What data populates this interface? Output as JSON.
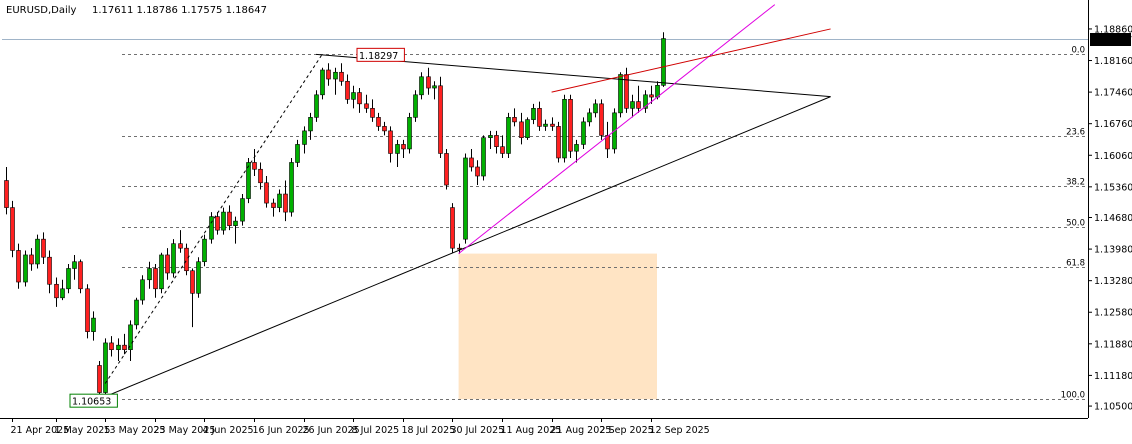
{
  "header": {
    "symbol_tf": "EURUSD,Daily",
    "ohlc": "1.17611 1.18786 1.17575 1.18647"
  },
  "chart_data": {
    "type": "candlestick",
    "symbol": "EURUSD",
    "timeframe": "Daily",
    "ylim": [
      1.1028,
      1.1928
    ],
    "y_ticks": [
      "1.18860",
      "1.18160",
      "1.17460",
      "1.16760",
      "1.16060",
      "1.15360",
      "1.14680",
      "1.13980",
      "1.13280",
      "1.12580",
      "1.11880",
      "1.11180",
      "1.10500"
    ],
    "x_ticks": [
      {
        "label": "21 Apr 2025",
        "i": 1
      },
      {
        "label": "1 May 2025",
        "i": 8
      },
      {
        "label": "13 May 2025",
        "i": 16
      },
      {
        "label": "23 May 2025",
        "i": 24
      },
      {
        "label": "4 Jun 2025",
        "i": 32
      },
      {
        "label": "16 Jun 2025",
        "i": 40
      },
      {
        "label": "26 Jun 2025",
        "i": 48
      },
      {
        "label": "8 Jul 2025",
        "i": 56
      },
      {
        "label": "18 Jul 2025",
        "i": 64
      },
      {
        "label": "30 Jul 2025",
        "i": 72
      },
      {
        "label": "11 Aug 2025",
        "i": 80
      },
      {
        "label": "21 Aug 2025",
        "i": 88
      },
      {
        "label": "2 Sep 2025",
        "i": 96
      },
      {
        "label": "12 Sep 2025",
        "i": 104
      }
    ],
    "price_tag": "1.18647",
    "last_price": 1.18647,
    "swing_high_label": "1.18297",
    "swing_high_price": 1.18297,
    "swing_low_label": "1.10653",
    "swing_low_price": 1.10653,
    "fib_levels": [
      {
        "label": "0.0",
        "price": 1.18297
      },
      {
        "label": "23.6",
        "price": 1.16493
      },
      {
        "label": "38.2",
        "price": 1.15377
      },
      {
        "label": "50.0",
        "price": 1.14475
      },
      {
        "label": "61.8",
        "price": 1.13573
      },
      {
        "label": "100.0",
        "price": 1.10653
      }
    ],
    "zone": {
      "i_start": 73,
      "i_end": 105,
      "price_top": 1.1388,
      "price_bottom": 1.10653,
      "color": "#FFE4C4"
    },
    "trendlines": [
      {
        "name": "resistance",
        "color": "#000000",
        "p1": [
          50,
          1.18297
        ],
        "p2": [
          133,
          1.1736
        ]
      },
      {
        "name": "support",
        "color": "#000000",
        "p1": [
          15,
          1.10653
        ],
        "p2": [
          133,
          1.1736
        ]
      },
      {
        "name": "rising-support",
        "color": "#E000E0",
        "p1": [
          73,
          1.1388
        ],
        "p2": [
          124,
          1.194
        ]
      },
      {
        "name": "channel-top",
        "color": "#D00000",
        "p1": [
          88,
          1.1746
        ],
        "p2": [
          133,
          1.1886
        ]
      },
      {
        "name": "swing-connector",
        "color": "#000000",
        "dashed": true,
        "p1": [
          16,
          1.11
        ],
        "p2": [
          51,
          1.18297
        ]
      }
    ],
    "colors": {
      "bull": "#00B000",
      "bear": "#FF2020",
      "grid": "#808080",
      "price_line": "#A0B4C8"
    },
    "candles": [
      [
        1.155,
        1.158,
        1.1475,
        1.149
      ],
      [
        1.149,
        1.1505,
        1.138,
        1.1395
      ],
      [
        1.1395,
        1.141,
        1.131,
        1.1325
      ],
      [
        1.1325,
        1.1395,
        1.1315,
        1.1385
      ],
      [
        1.1385,
        1.14,
        1.135,
        1.1365
      ],
      [
        1.1365,
        1.143,
        1.1355,
        1.142
      ],
      [
        1.142,
        1.1435,
        1.1365,
        1.138
      ],
      [
        1.138,
        1.1395,
        1.13,
        1.132
      ],
      [
        1.132,
        1.1335,
        1.127,
        1.129
      ],
      [
        1.129,
        1.133,
        1.1285,
        1.131
      ],
      [
        1.131,
        1.1365,
        1.13,
        1.1355
      ],
      [
        1.1355,
        1.1385,
        1.133,
        1.137
      ],
      [
        1.137,
        1.1375,
        1.13,
        1.131
      ],
      [
        1.131,
        1.132,
        1.12,
        1.1215
      ],
      [
        1.1215,
        1.126,
        1.1195,
        1.1245
      ],
      [
        1.114,
        1.115,
        1.1065,
        1.108
      ],
      [
        1.108,
        1.12,
        1.107,
        1.119
      ],
      [
        1.119,
        1.1205,
        1.116,
        1.1175
      ],
      [
        1.1175,
        1.12,
        1.115,
        1.1185
      ],
      [
        1.1185,
        1.121,
        1.1165,
        1.1175
      ],
      [
        1.1175,
        1.124,
        1.115,
        1.123
      ],
      [
        1.123,
        1.129,
        1.122,
        1.1285
      ],
      [
        1.1285,
        1.134,
        1.1275,
        1.133
      ],
      [
        1.133,
        1.137,
        1.131,
        1.1355
      ],
      [
        1.1355,
        1.1365,
        1.129,
        1.131
      ],
      [
        1.131,
        1.139,
        1.13,
        1.1385
      ],
      [
        1.1385,
        1.14,
        1.133,
        1.1345
      ],
      [
        1.1345,
        1.142,
        1.1335,
        1.141
      ],
      [
        1.141,
        1.144,
        1.139,
        1.14
      ],
      [
        1.14,
        1.141,
        1.134,
        1.135
      ],
      [
        1.135,
        1.1355,
        1.1225,
        1.13
      ],
      [
        1.13,
        1.138,
        1.129,
        1.137
      ],
      [
        1.137,
        1.143,
        1.136,
        1.142
      ],
      [
        1.142,
        1.148,
        1.141,
        1.147
      ],
      [
        1.147,
        1.148,
        1.143,
        1.144
      ],
      [
        1.144,
        1.149,
        1.143,
        1.148
      ],
      [
        1.148,
        1.1495,
        1.144,
        1.145
      ],
      [
        1.145,
        1.147,
        1.141,
        1.146
      ],
      [
        1.146,
        1.152,
        1.145,
        1.151
      ],
      [
        1.151,
        1.16,
        1.15,
        1.159
      ],
      [
        1.159,
        1.162,
        1.156,
        1.1575
      ],
      [
        1.1575,
        1.159,
        1.153,
        1.1545
      ],
      [
        1.1545,
        1.156,
        1.149,
        1.15
      ],
      [
        1.15,
        1.151,
        1.147,
        1.149
      ],
      [
        1.149,
        1.153,
        1.148,
        1.152
      ],
      [
        1.152,
        1.155,
        1.146,
        1.148
      ],
      [
        1.148,
        1.16,
        1.147,
        1.159
      ],
      [
        1.159,
        1.164,
        1.158,
        1.163
      ],
      [
        1.163,
        1.167,
        1.161,
        1.166
      ],
      [
        1.166,
        1.17,
        1.164,
        1.169
      ],
      [
        1.169,
        1.175,
        1.168,
        1.174
      ],
      [
        1.174,
        1.18,
        1.173,
        1.1795
      ],
      [
        1.1795,
        1.181,
        1.176,
        1.1775
      ],
      [
        1.1775,
        1.18,
        1.174,
        1.179
      ],
      [
        1.179,
        1.181,
        1.176,
        1.177
      ],
      [
        1.177,
        1.1785,
        1.172,
        1.173
      ],
      [
        1.173,
        1.176,
        1.171,
        1.1745
      ],
      [
        1.1745,
        1.1755,
        1.17,
        1.172
      ],
      [
        1.172,
        1.174,
        1.17,
        1.171
      ],
      [
        1.171,
        1.173,
        1.168,
        1.169
      ],
      [
        1.169,
        1.17,
        1.166,
        1.167
      ],
      [
        1.167,
        1.168,
        1.165,
        1.166
      ],
      [
        1.166,
        1.167,
        1.159,
        1.161
      ],
      [
        1.161,
        1.164,
        1.158,
        1.163
      ],
      [
        1.163,
        1.164,
        1.16,
        1.162
      ],
      [
        1.162,
        1.17,
        1.161,
        1.169
      ],
      [
        1.169,
        1.175,
        1.168,
        1.174
      ],
      [
        1.174,
        1.179,
        1.173,
        1.178
      ],
      [
        1.178,
        1.18,
        1.174,
        1.1755
      ],
      [
        1.1755,
        1.177,
        1.173,
        1.176
      ],
      [
        1.176,
        1.178,
        1.16,
        1.161
      ],
      [
        1.161,
        1.162,
        1.153,
        1.154
      ],
      [
        1.149,
        1.15,
        1.139,
        1.14
      ],
      [
        1.14,
        1.141,
        1.1388,
        1.1398
      ],
      [
        1.142,
        1.161,
        1.141,
        1.16
      ],
      [
        1.16,
        1.162,
        1.157,
        1.158
      ],
      [
        1.158,
        1.1595,
        1.154,
        1.156
      ],
      [
        1.156,
        1.165,
        1.155,
        1.1645
      ],
      [
        1.1645,
        1.166,
        1.162,
        1.165
      ],
      [
        1.165,
        1.166,
        1.161,
        1.1625
      ],
      [
        1.1625,
        1.165,
        1.16,
        1.161
      ],
      [
        1.161,
        1.17,
        1.16,
        1.169
      ],
      [
        1.169,
        1.171,
        1.167,
        1.168
      ],
      [
        1.168,
        1.17,
        1.163,
        1.1645
      ],
      [
        1.1645,
        1.169,
        1.164,
        1.1685
      ],
      [
        1.1685,
        1.172,
        1.1675,
        1.171
      ],
      [
        1.171,
        1.1725,
        1.166,
        1.167
      ],
      [
        1.167,
        1.1685,
        1.166,
        1.1675
      ],
      [
        1.1675,
        1.169,
        1.166,
        1.167
      ],
      [
        1.167,
        1.168,
        1.159,
        1.16
      ],
      [
        1.16,
        1.174,
        1.159,
        1.173
      ],
      [
        1.173,
        1.174,
        1.16,
        1.1615
      ],
      [
        1.1615,
        1.164,
        1.159,
        1.163
      ],
      [
        1.163,
        1.169,
        1.162,
        1.168
      ],
      [
        1.168,
        1.171,
        1.167,
        1.17
      ],
      [
        1.17,
        1.173,
        1.169,
        1.172
      ],
      [
        1.172,
        1.173,
        1.164,
        1.165
      ],
      [
        1.165,
        1.168,
        1.16,
        1.162
      ],
      [
        1.162,
        1.171,
        1.161,
        1.17
      ],
      [
        1.17,
        1.179,
        1.169,
        1.1785
      ],
      [
        1.1785,
        1.18,
        1.17,
        1.171
      ],
      [
        1.171,
        1.174,
        1.169,
        1.1725
      ],
      [
        1.1725,
        1.176,
        1.17,
        1.171
      ],
      [
        1.171,
        1.175,
        1.17,
        1.174
      ],
      [
        1.174,
        1.176,
        1.172,
        1.1735
      ],
      [
        1.1735,
        1.177,
        1.173,
        1.1761
      ],
      [
        1.1761,
        1.18786,
        1.17575,
        1.18647
      ]
    ]
  }
}
